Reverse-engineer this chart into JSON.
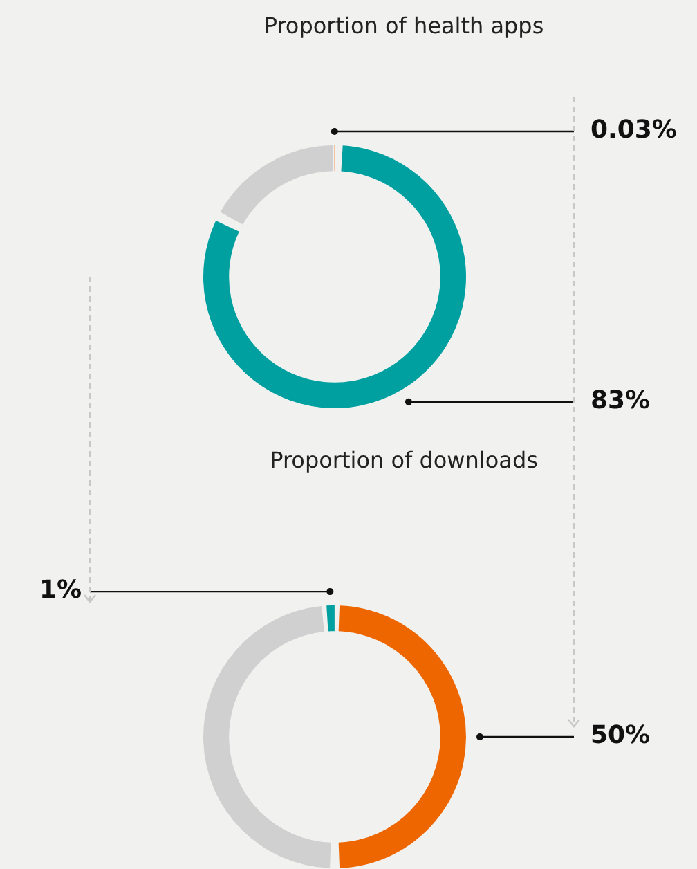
{
  "chart_data": [
    {
      "type": "donut",
      "title": "Proportion of health apps",
      "categories": [
        null,
        null,
        null
      ],
      "values": [
        83,
        16.97,
        0.03
      ],
      "colors": [
        "#00a0a0",
        "#d0d0d0",
        "#ee6600"
      ],
      "value_labels": [
        "83%",
        null,
        "0.03%"
      ],
      "legend": false
    },
    {
      "type": "donut",
      "title": "Proportion of downloads",
      "categories": [
        null,
        null,
        null
      ],
      "values": [
        50,
        49,
        1
      ],
      "colors": [
        "#ee6600",
        "#d0d0d0",
        "#00a0a0"
      ],
      "value_labels": [
        "50%",
        null,
        "1%"
      ],
      "legend": false
    }
  ]
}
